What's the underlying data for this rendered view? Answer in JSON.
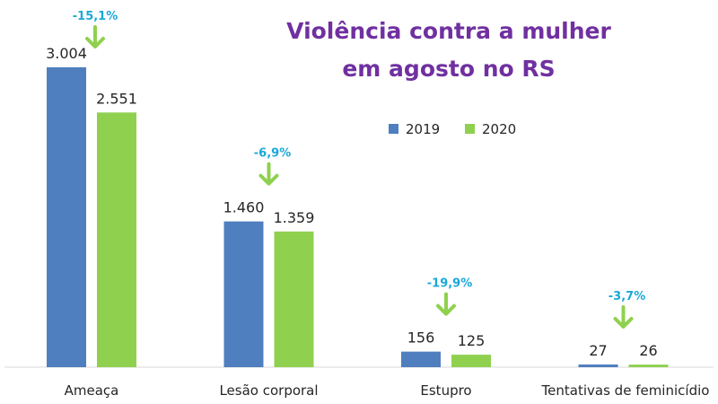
{
  "chart_data": {
    "type": "bar",
    "title_lines": [
      "Violência contra a mulher",
      "em agosto no RS"
    ],
    "categories": [
      "Ameaça",
      "Lesão corporal",
      "Estupro",
      "Tentativas de feminicídio"
    ],
    "series": [
      {
        "name": "2019",
        "values": [
          3004,
          1460,
          156,
          27
        ],
        "value_labels": [
          "3.004",
          "1.460",
          "156",
          "27"
        ],
        "color": "#4f7fbf"
      },
      {
        "name": "2020",
        "values": [
          2551,
          1359,
          125,
          26
        ],
        "value_labels": [
          "2.551",
          "1.359",
          "125",
          "26"
        ],
        "color": "#8fd14f"
      }
    ],
    "changes": [
      "-15,1%",
      "-6,9%",
      "-19,9%",
      "-3,7%"
    ],
    "ylim": [
      0,
      3300
    ],
    "grid": false,
    "legend_position": "top-right",
    "title_color": "#7030a0",
    "change_color": "#1aa8d8",
    "arrow_color": "#8fd14f",
    "axis_color": "#d9d9d9",
    "label_color": "#262626"
  }
}
